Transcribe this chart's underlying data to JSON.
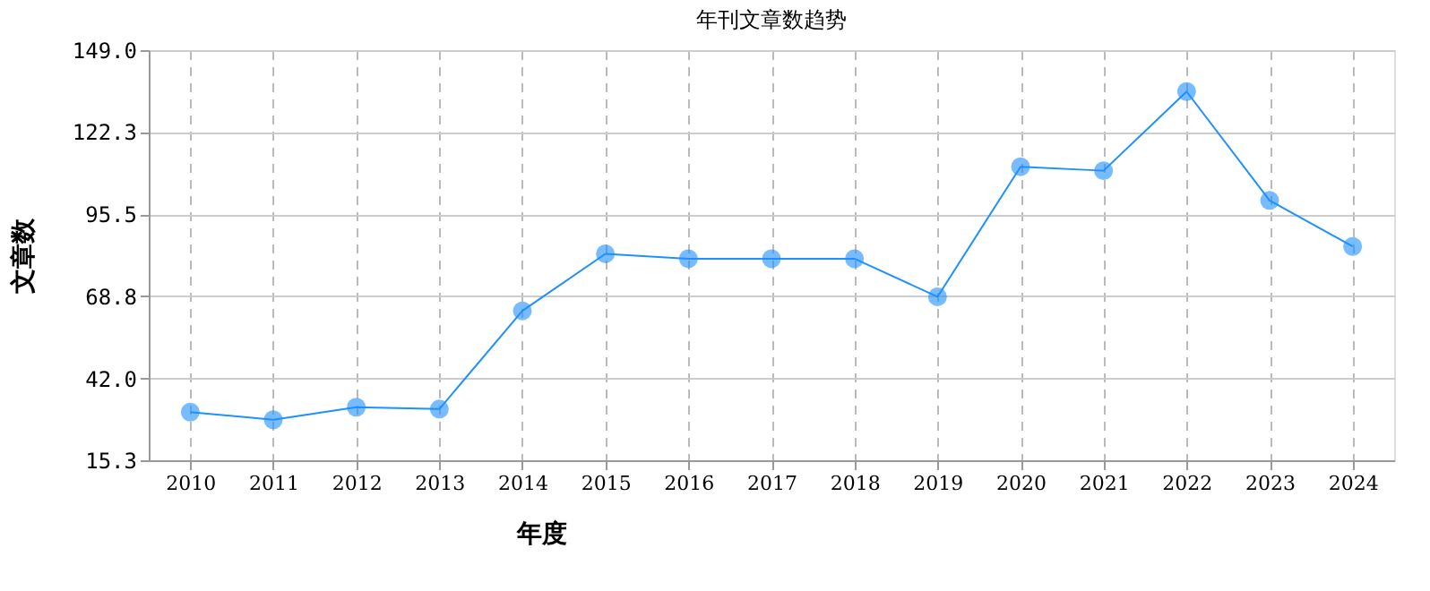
{
  "chart_data": {
    "type": "line",
    "title": "年刊文章数趋势",
    "xlabel": "年度",
    "ylabel": "文章数",
    "categories": [
      "2010",
      "2011",
      "2012",
      "2013",
      "2014",
      "2015",
      "2016",
      "2017",
      "2018",
      "2019",
      "2020",
      "2021",
      "2022",
      "2023",
      "2024"
    ],
    "series": [
      {
        "color": "#1e90ff",
        "values": [
          31,
          28.5,
          32.6,
          32,
          64,
          82.6,
          81,
          81,
          81,
          68.6,
          111,
          109.7,
          135.5,
          100,
          85
        ]
      }
    ],
    "ylim": [
      15.3,
      149.0
    ],
    "yticks": [
      {
        "value": 15.3,
        "label": "15.3"
      },
      {
        "value": 42.0,
        "label": "42.0"
      },
      {
        "value": 68.8,
        "label": "68.8"
      },
      {
        "value": 95.5,
        "label": "95.5"
      },
      {
        "value": 122.3,
        "label": "122.3"
      },
      {
        "value": 149.0,
        "label": "149.0"
      }
    ],
    "grid": true,
    "legend": false,
    "marker": "circle",
    "line_style": "solid"
  }
}
